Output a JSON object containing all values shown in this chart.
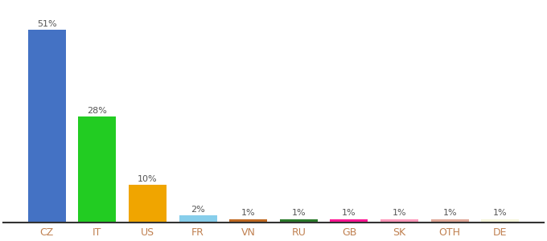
{
  "categories": [
    "CZ",
    "IT",
    "US",
    "FR",
    "VN",
    "RU",
    "GB",
    "SK",
    "OTH",
    "DE"
  ],
  "values": [
    51,
    28,
    10,
    2,
    1,
    1,
    1,
    1,
    1,
    1
  ],
  "labels": [
    "51%",
    "28%",
    "10%",
    "2%",
    "1%",
    "1%",
    "1%",
    "1%",
    "1%",
    "1%"
  ],
  "bar_colors": [
    "#4472c4",
    "#22cc22",
    "#f0a500",
    "#87ceeb",
    "#c06820",
    "#2a7a2a",
    "#ff1493",
    "#ff99bb",
    "#e0a898",
    "#f5f5dc"
  ],
  "ylim": [
    0,
    58
  ],
  "background_color": "#ffffff",
  "label_color": "#555555",
  "xlabel_color": "#c08050",
  "label_fontsize": 8,
  "xlabel_fontsize": 9
}
